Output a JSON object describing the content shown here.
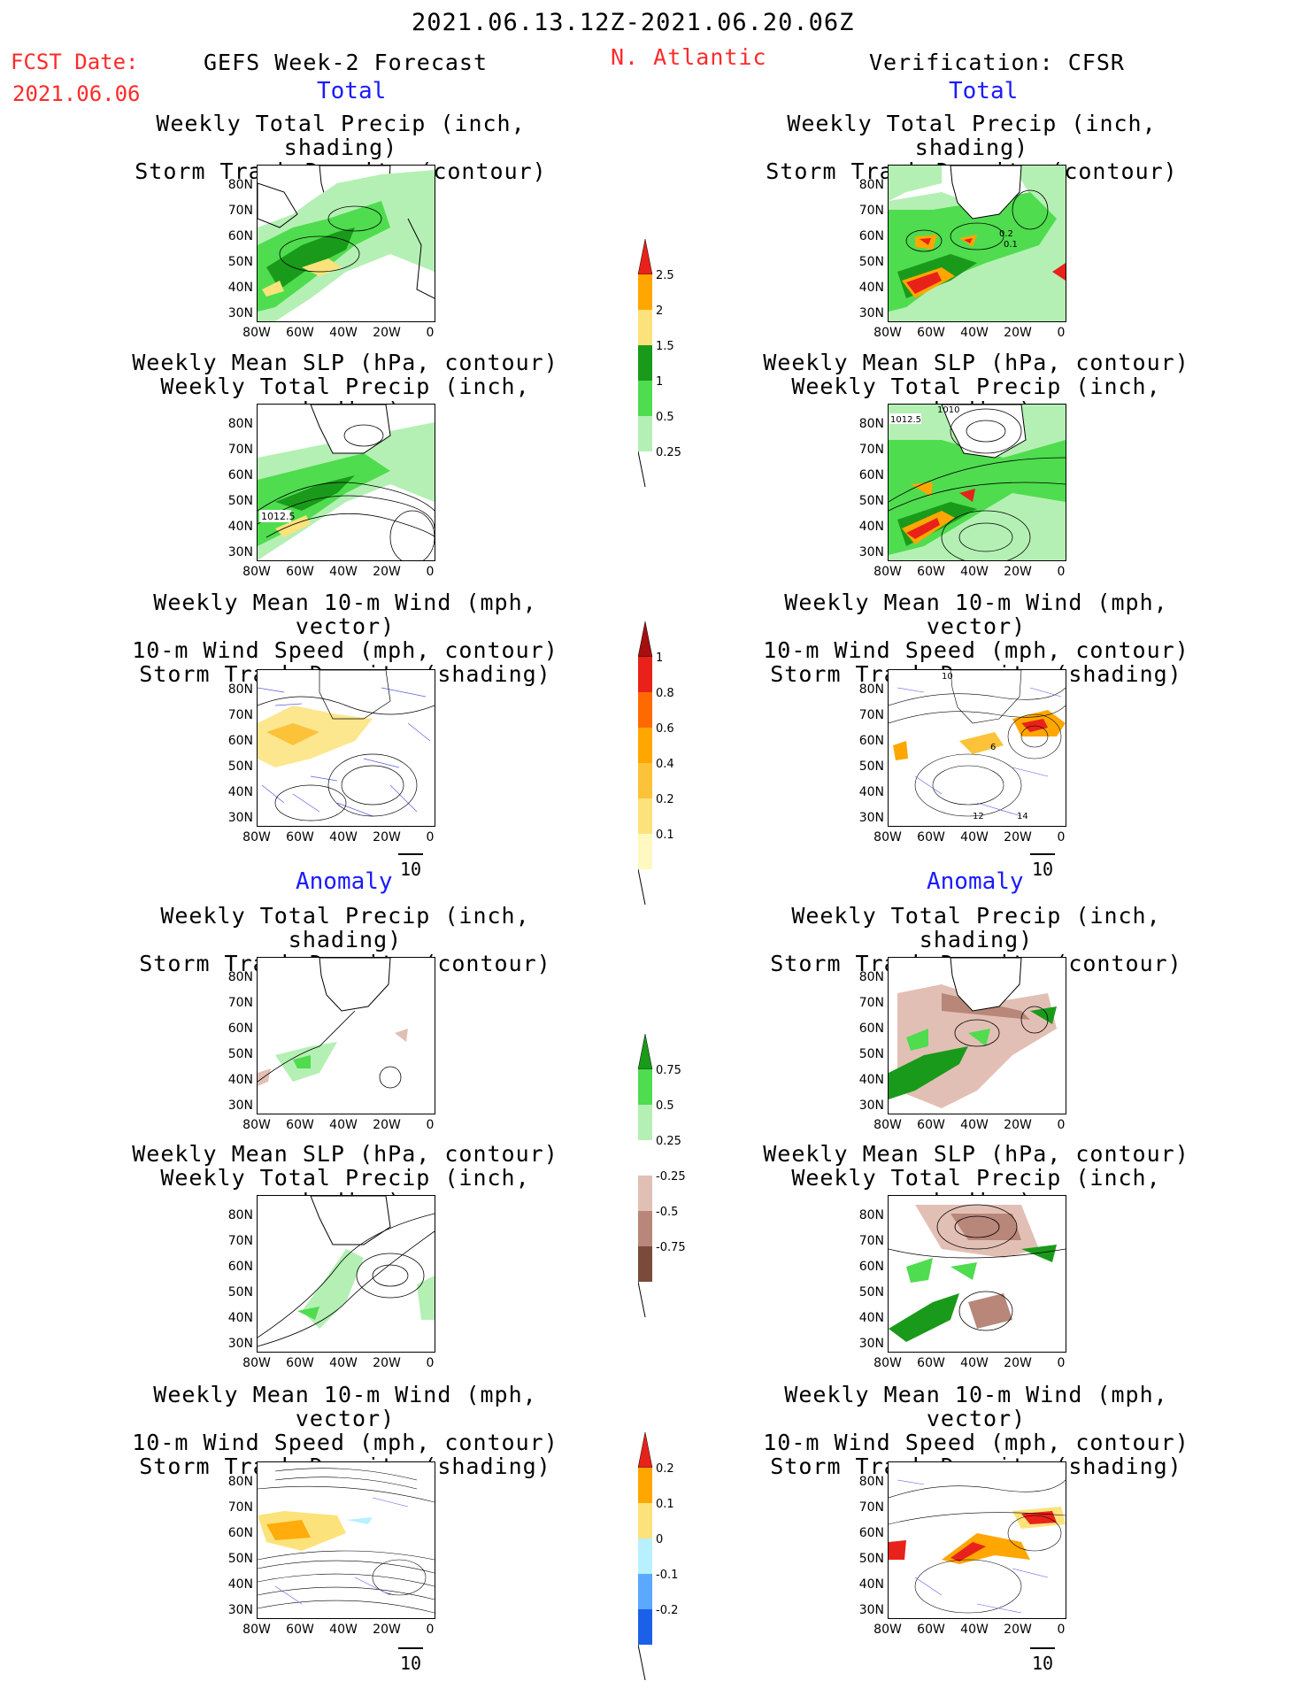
{
  "header": {
    "period": "2021.06.13.12Z-2021.06.20.06Z",
    "fcst_label": "FCST Date:",
    "fcst_date": "2021.06.06",
    "left_title": "GEFS Week-2 Forecast",
    "region": "N. Atlantic",
    "right_title": "Verification: CFSR"
  },
  "sections": {
    "total": "Total",
    "anomaly": "Anomaly"
  },
  "titles": {
    "precip_track": [
      "Weekly Total Precip (inch, shading)",
      "Storm Track Density (contour)"
    ],
    "slp_precip": [
      "Weekly Mean SLP (hPa, contour)",
      "Weekly Total Precip (inch, shading)"
    ],
    "wind": [
      "Weekly Mean 10-m Wind (mph, vector)",
      "10-m Wind Speed (mph, contour)",
      "Storm Track Density (shading)"
    ]
  },
  "axes": {
    "lat_ticks": [
      "80N",
      "70N",
      "60N",
      "50N",
      "40N",
      "30N"
    ],
    "lon_ticks": [
      "80W",
      "60W",
      "40W",
      "20W",
      "0"
    ]
  },
  "vector_scale": "10",
  "contour_labels": {
    "fcst_slp": "1012.5",
    "ver_slp": "1012.5",
    "ver_slp_top": "1010",
    "ver_track_a": "0.2",
    "ver_track_b": "0.1",
    "ver_wind_a": "10",
    "ver_wind_b": "12",
    "ver_wind_c": "14",
    "ver_wind_d": "6"
  },
  "colorbars": {
    "precip_total": {
      "labels": [
        "2.5",
        "2",
        "1.5",
        "1",
        "0.5",
        "0.25"
      ],
      "colors": [
        "#e8221a",
        "#ffa600",
        "#fce27a",
        "#1a9a1a",
        "#4fdc4f",
        "#b4f0b4"
      ]
    },
    "track_total": {
      "labels": [
        "1",
        "0.8",
        "0.6",
        "0.4",
        "0.2",
        "0.1"
      ],
      "colors": [
        "#a50f0f",
        "#e8221a",
        "#ff6a00",
        "#ffa600",
        "#fcc23a",
        "#fce27a",
        "#fff8c0"
      ]
    },
    "precip_anom": {
      "labels": [
        "0.75",
        "0.5",
        "0.25",
        "-0.25",
        "-0.5",
        "-0.75"
      ],
      "colors": [
        "#1a9a1a",
        "#4fdc4f",
        "#b4f0b4",
        "#ffffff",
        "#e2bfb4",
        "#b8877a",
        "#7a4a3a"
      ]
    },
    "track_anom": {
      "labels": [
        "0.2",
        "0.1",
        "0",
        "-0.1",
        "-0.2"
      ],
      "colors": [
        "#e8221a",
        "#ffa600",
        "#fce27a",
        "#b8f0ff",
        "#5aa8ff",
        "#1a60e8"
      ]
    }
  }
}
